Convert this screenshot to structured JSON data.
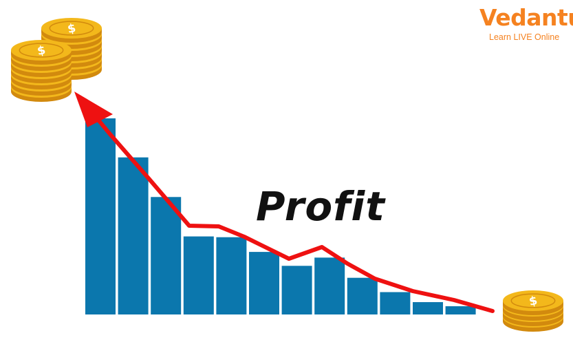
{
  "logo": {
    "brand": "Vedantu",
    "tagline": "Learn LIVE Online",
    "color": "#f58220"
  },
  "label": "Profit",
  "colors": {
    "bar": "#0b77ad",
    "trend": "#ee1111",
    "coin_face": "#f3b81b",
    "coin_edge": "#d28a0e",
    "coin_symbol": "#ffffff"
  },
  "icons": {
    "coin": "dollar-coin-icon"
  },
  "bars": [
    1.0,
    0.801,
    0.599,
    0.398,
    0.394,
    0.319,
    0.248,
    0.29,
    0.187,
    0.114,
    0.063,
    0.042
  ]
}
